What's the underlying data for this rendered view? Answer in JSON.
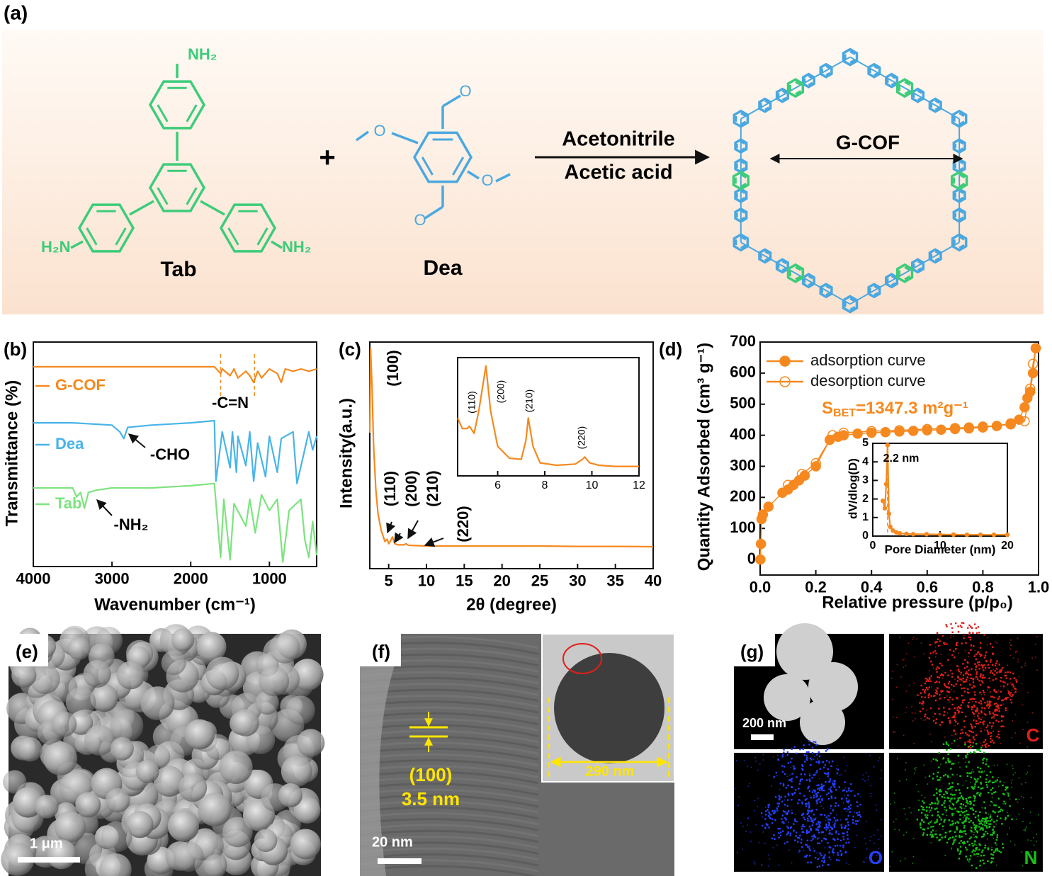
{
  "panel_labels": {
    "a": "(a)",
    "b": "(b)",
    "c": "(c)",
    "d": "(d)",
    "e": "(e)",
    "f": "(f)",
    "g": "(g)"
  },
  "scheme": {
    "tab_amines": [
      "NH₂",
      "H₂N",
      "NH₂"
    ],
    "tab_label": "Tab",
    "plus": "+",
    "dea_oxygens": [
      "O",
      "O",
      "O",
      "O"
    ],
    "dea_label": "Dea",
    "solvent": "Acetonitrile",
    "catalyst": "Acetic acid",
    "product": "G-COF"
  },
  "micrographs": {
    "sem_scale": "1 μm",
    "tem_lattice": "(100)",
    "tem_spacing": "3.5 nm",
    "tem_scale": "20 nm",
    "tem_inset_size": "290 nm",
    "eds_scale": "200 nm",
    "eds_elements": [
      "C",
      "O",
      "N"
    ]
  },
  "chart_data": [
    {
      "type": "line",
      "xlabel": "Wavenumber (cm⁻¹)",
      "ylabel": "Transmittance (%)",
      "xlim": [
        4000,
        400
      ],
      "ylim": [
        0,
        100
      ],
      "xticks": [
        4000,
        3000,
        2000,
        1000
      ],
      "legend": "inline",
      "vlines": [
        1620,
        1190
      ],
      "vline_color": "#f5891f",
      "series": [
        {
          "name": "G-COF",
          "color": "#f5891f",
          "x": [
            4000,
            3500,
            3000,
            2500,
            2000,
            1700,
            1620,
            1600,
            1500,
            1450,
            1400,
            1300,
            1250,
            1200,
            1150,
            1100,
            1000,
            900,
            850,
            800,
            700,
            600,
            500,
            400
          ],
          "values": [
            89,
            89,
            89,
            89,
            89,
            89,
            86,
            88,
            85,
            88,
            84,
            87,
            85,
            82,
            87,
            84,
            88,
            86,
            82,
            88,
            87,
            88,
            87,
            88
          ]
        },
        {
          "name": "Dea",
          "color": "#48b4e8",
          "x": [
            4000,
            3500,
            3000,
            2900,
            2850,
            2800,
            2500,
            2000,
            1700,
            1680,
            1600,
            1500,
            1470,
            1420,
            1400,
            1300,
            1250,
            1200,
            1150,
            1050,
            1000,
            900,
            850,
            700,
            650,
            500,
            450,
            400
          ],
          "values": [
            64,
            64,
            63,
            60,
            57,
            62,
            63,
            64,
            65,
            38,
            60,
            44,
            60,
            42,
            58,
            45,
            60,
            38,
            55,
            40,
            58,
            42,
            57,
            60,
            37,
            60,
            52,
            58
          ]
        },
        {
          "name": "Tab",
          "color": "#7de37f",
          "x": [
            4000,
            3500,
            3450,
            3400,
            3350,
            3300,
            3200,
            3000,
            2500,
            2000,
            1700,
            1620,
            1580,
            1500,
            1450,
            1300,
            1250,
            1180,
            1100,
            1000,
            900,
            830,
            750,
            600,
            550,
            500,
            450,
            400
          ],
          "values": [
            35,
            35,
            31,
            33,
            26,
            33,
            34,
            35,
            35,
            36,
            37,
            4,
            30,
            3,
            28,
            18,
            30,
            15,
            32,
            25,
            30,
            2,
            25,
            30,
            12,
            4,
            20,
            5
          ]
        }
      ],
      "annotations": [
        "-C=N",
        "-CHO",
        "-NH₂"
      ]
    },
    {
      "type": "line",
      "xlabel": "2θ (degree)",
      "ylabel": "Intensity(a.u.)",
      "xlim": [
        2.5,
        40
      ],
      "ylim": [
        0,
        100
      ],
      "xticks": [
        5,
        10,
        15,
        20,
        25,
        30,
        35,
        40
      ],
      "series": [
        {
          "name": null,
          "color": "#f5891f",
          "x": [
            2.5,
            2.6,
            2.8,
            3.0,
            3.3,
            3.6,
            4.0,
            4.5,
            4.8,
            5.0,
            5.2,
            5.5,
            5.8,
            6.2,
            7.0,
            7.3,
            7.6,
            8.5,
            10,
            15,
            20,
            25,
            30,
            35,
            40
          ],
          "values": [
            60,
            97,
            80,
            55,
            35,
            24,
            17,
            12,
            13,
            11,
            12,
            14,
            11,
            10.5,
            10.5,
            11,
            10.3,
            10.2,
            10,
            10,
            10,
            10,
            9.8,
            9.8,
            9.7
          ]
        }
      ],
      "annotations": [
        "(100)",
        "(110)",
        "(200)",
        "(210)",
        "(220)"
      ]
    },
    {
      "type": "line",
      "xlim": [
        4.3,
        12
      ],
      "ylim": [
        0,
        100
      ],
      "xticks": [
        6,
        8,
        10,
        12
      ],
      "series": [
        {
          "name": null,
          "color": "#f5891f",
          "x": [
            4.3,
            4.5,
            4.7,
            4.8,
            5.0,
            5.2,
            5.5,
            5.7,
            6.0,
            6.5,
            7.0,
            7.2,
            7.3,
            7.5,
            7.8,
            8.5,
            9.3,
            9.6,
            9.7,
            9.9,
            10.3,
            11,
            12
          ],
          "values": [
            49,
            40,
            40,
            42,
            36,
            55,
            93,
            55,
            25,
            15,
            14,
            30,
            49,
            25,
            11,
            9,
            10,
            14,
            16,
            11,
            9,
            8,
            8
          ]
        }
      ],
      "annotations": [
        "(110)",
        "(200)",
        "(210)",
        "(220)"
      ]
    },
    {
      "type": "line",
      "xlabel": "Relative pressure (p/p₀)",
      "ylabel": "Quantity Adsorbed (cm³ g⁻¹)",
      "xlim": [
        0,
        1
      ],
      "ylim": [
        -50,
        700
      ],
      "xticks": [
        {
          "value": 0,
          "label": "0.0"
        },
        0.2,
        0.4,
        0.6,
        0.8,
        {
          "value": 1,
          "label": "1.0"
        }
      ],
      "yticks": [
        0,
        100,
        200,
        300,
        400,
        500,
        600,
        700
      ],
      "legend": "upper left",
      "series": [
        {
          "name": "adsorption curve",
          "color": "#f5891f",
          "marker": "filled",
          "x": [
            0.001,
            0.003,
            0.005,
            0.01,
            0.03,
            0.08,
            0.1,
            0.12,
            0.14,
            0.16,
            0.2,
            0.25,
            0.28,
            0.3,
            0.35,
            0.4,
            0.45,
            0.5,
            0.55,
            0.6,
            0.65,
            0.7,
            0.75,
            0.8,
            0.85,
            0.9,
            0.93,
            0.95,
            0.96,
            0.97,
            0.98,
            0.99
          ],
          "values": [
            0,
            50,
            130,
            145,
            170,
            215,
            225,
            240,
            255,
            270,
            300,
            385,
            395,
            400,
            405,
            408,
            410,
            412,
            414,
            416,
            418,
            420,
            422,
            425,
            430,
            438,
            450,
            490,
            520,
            540,
            600,
            680
          ]
        },
        {
          "name": "desorption curve",
          "color": "#f5891f",
          "marker": "open",
          "x": [
            0.99,
            0.98,
            0.97,
            0.95,
            0.9,
            0.85,
            0.8,
            0.75,
            0.7,
            0.6,
            0.5,
            0.4,
            0.3,
            0.26,
            0.2,
            0.15,
            0.1
          ],
          "values": [
            680,
            630,
            550,
            445,
            435,
            430,
            428,
            425,
            423,
            420,
            416,
            413,
            408,
            400,
            310,
            275,
            240
          ]
        }
      ],
      "annotations": [
        {
          "main": "S",
          "sub": "BET",
          "rest": "=1347.3 m²g⁻¹"
        }
      ]
    },
    {
      "type": "line",
      "xlabel": "Pore Diameter (nm)",
      "ylabel": "dV/dlog(D)",
      "xlim": [
        0,
        20
      ],
      "ylim": [
        0,
        5
      ],
      "xticks": [
        0,
        10,
        20
      ],
      "yticks": [
        0,
        1,
        2,
        3,
        4,
        5
      ],
      "vlines": [
        2.2
      ],
      "vline_color": "#f5891f",
      "series": [
        {
          "name": null,
          "color": "#f5891f",
          "marker": "filled",
          "x": [
            1.5,
            1.8,
            2.0,
            2.2,
            2.4,
            2.6,
            3,
            3.5,
            4,
            5,
            6,
            8,
            10,
            12,
            14,
            16,
            18,
            20
          ],
          "values": [
            1.9,
            1.5,
            2.8,
            4.9,
            1.2,
            0.5,
            0.3,
            0.2,
            0.15,
            0.12,
            0.1,
            0.1,
            0.08,
            0.08,
            0.07,
            0.07,
            0.07,
            0.07
          ]
        }
      ],
      "annotations": [
        "2.2 nm"
      ]
    }
  ]
}
